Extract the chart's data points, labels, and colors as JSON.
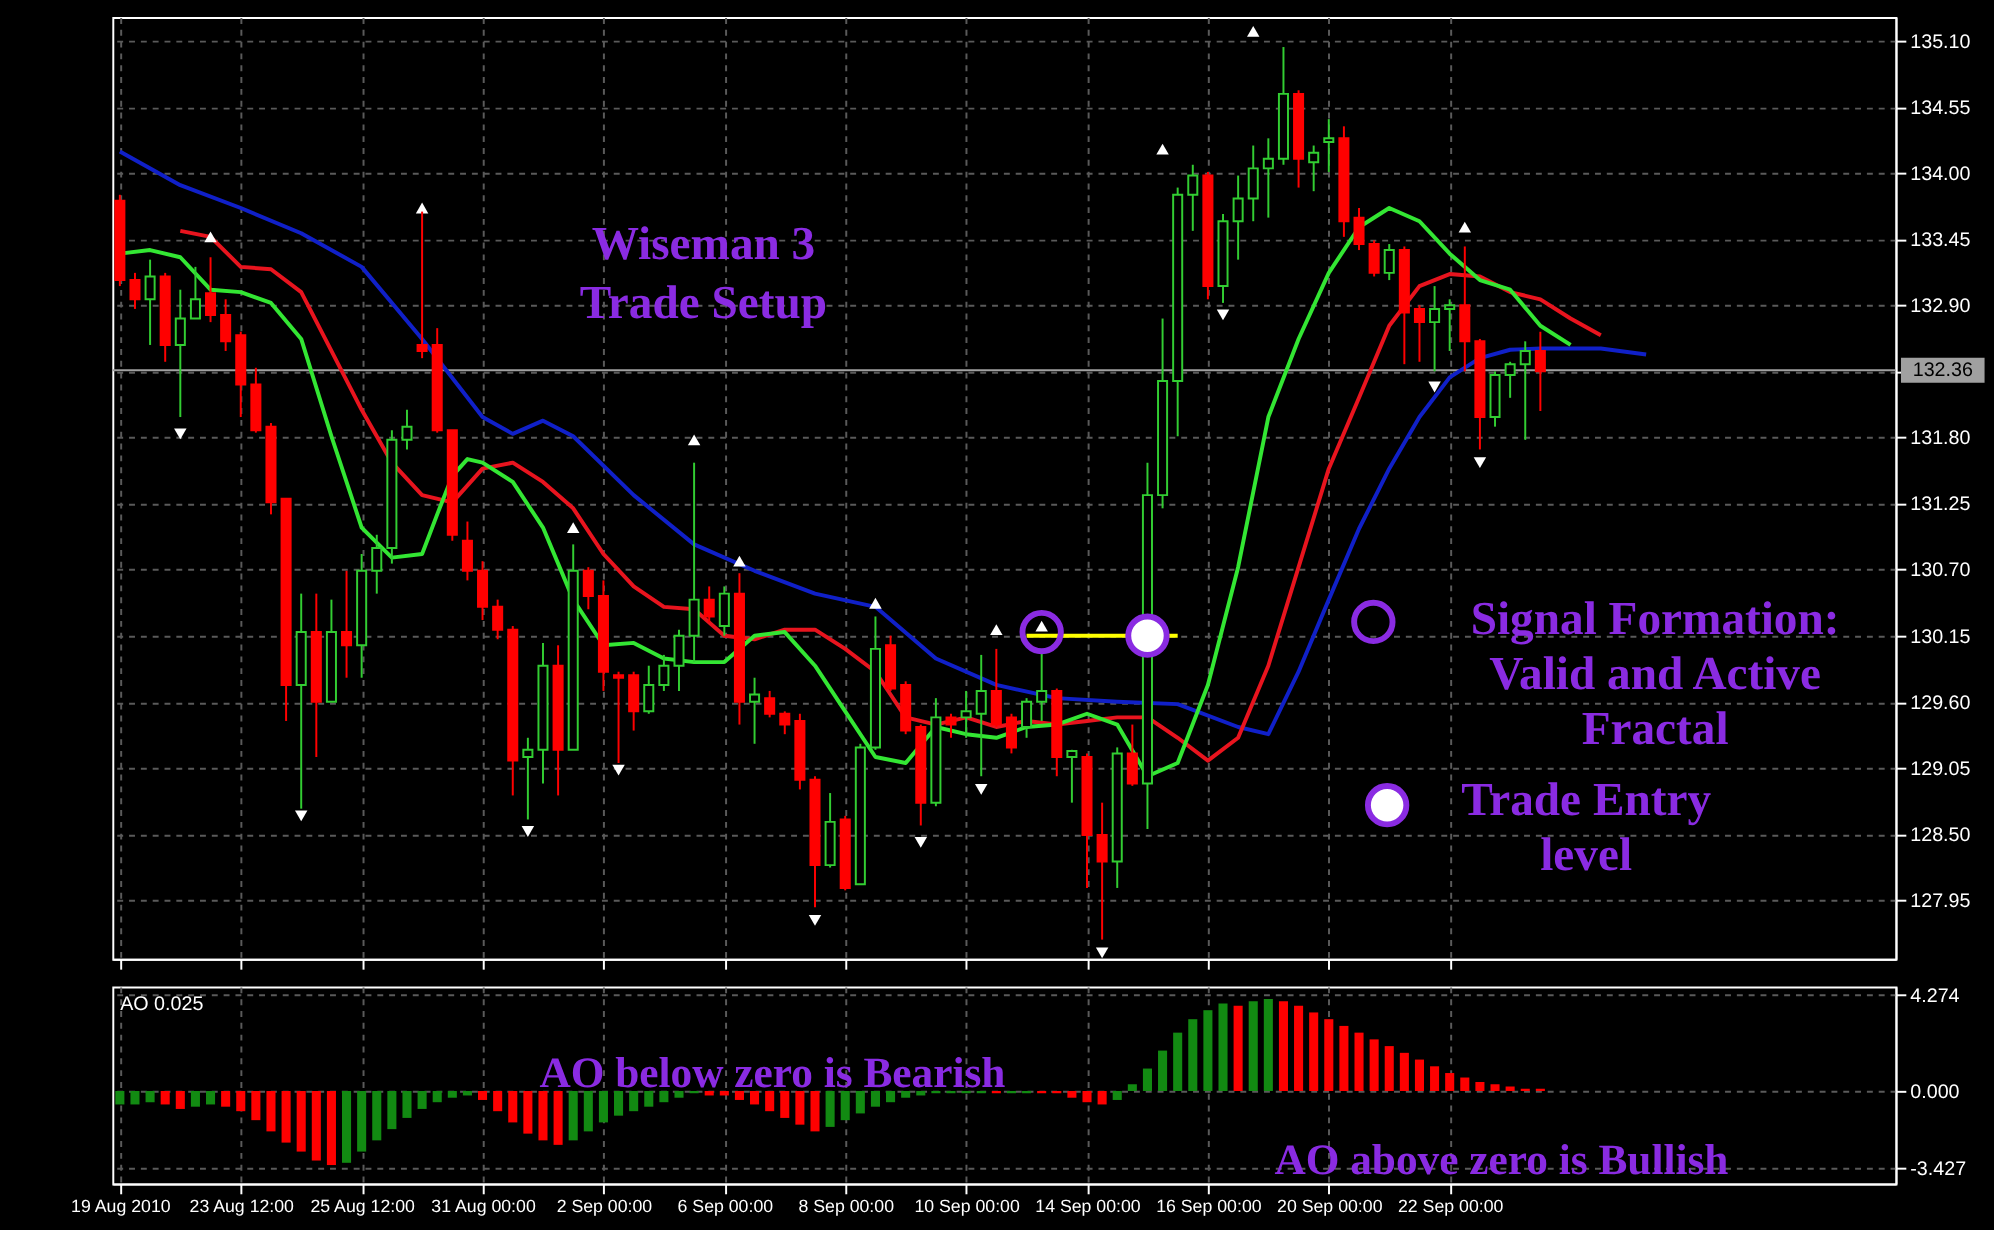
{
  "chart_data": [
    {
      "type": "candlestick",
      "annotations": [
        "Wiseman 3\nTrade Setup"
      ],
      "categories": [
        null,
        null,
        null,
        null,
        null,
        null,
        null,
        null,
        null,
        null,
        null,
        null,
        null,
        null,
        null,
        null,
        null,
        null,
        null,
        null,
        null,
        null,
        null,
        null,
        null,
        null,
        null,
        null,
        null,
        null,
        null,
        null,
        null,
        null,
        null,
        null,
        null,
        null,
        null,
        null,
        null,
        null,
        null,
        null,
        null,
        null,
        null,
        null,
        null,
        null,
        null,
        null,
        null,
        null,
        null,
        null,
        null,
        null,
        null,
        null,
        null,
        null,
        null,
        null,
        null,
        null,
        null,
        null,
        null,
        null,
        null,
        null,
        null,
        null,
        null,
        null,
        null,
        null,
        null,
        null,
        null,
        null,
        null,
        null,
        null,
        null,
        null,
        null,
        null,
        null,
        null,
        null,
        null,
        null,
        null,
        null,
        null,
        null,
        null,
        null,
        null,
        null,
        null,
        null,
        null,
        null,
        null,
        null,
        null,
        null,
        null,
        null,
        null,
        null,
        null,
        null,
        null,
        null
      ],
      "ohlc": [
        [
          133.77,
          133.82,
          133.06,
          133.11
        ],
        [
          133.11,
          133.17,
          132.87,
          132.95
        ],
        [
          132.95,
          133.28,
          132.57,
          133.14
        ],
        [
          133.14,
          133.17,
          132.43,
          132.57
        ],
        [
          132.57,
          133.03,
          131.97,
          132.79
        ],
        [
          132.79,
          133.22,
          132.79,
          132.95
        ],
        [
          133.0,
          133.3,
          132.76,
          132.82
        ],
        [
          132.82,
          132.95,
          132.52,
          132.6
        ],
        [
          132.65,
          132.68,
          131.97,
          132.24
        ],
        [
          132.24,
          132.38,
          131.84,
          131.86
        ],
        [
          131.89,
          131.92,
          131.16,
          131.26
        ],
        [
          131.29,
          131.29,
          129.44,
          129.74
        ],
        [
          129.74,
          130.5,
          128.71,
          130.18
        ],
        [
          130.18,
          130.5,
          129.14,
          129.6
        ],
        [
          129.6,
          130.45,
          129.6,
          130.18
        ],
        [
          130.18,
          130.69,
          129.8,
          130.07
        ],
        [
          130.07,
          130.83,
          129.8,
          130.69
        ],
        [
          130.69,
          130.99,
          130.5,
          130.88
        ],
        [
          130.88,
          131.86,
          130.75,
          131.78
        ],
        [
          131.78,
          132.03,
          131.7,
          131.89
        ],
        [
          132.57,
          133.68,
          132.46,
          132.52
        ],
        [
          132.57,
          132.71,
          131.84,
          131.86
        ],
        [
          131.86,
          131.86,
          130.94,
          130.99
        ],
        [
          130.94,
          131.1,
          130.61,
          130.69
        ],
        [
          130.69,
          130.77,
          130.28,
          130.39
        ],
        [
          130.39,
          130.45,
          130.12,
          130.2
        ],
        [
          130.2,
          130.23,
          128.82,
          129.11
        ],
        [
          129.14,
          129.3,
          128.62,
          129.2
        ],
        [
          129.2,
          130.09,
          128.92,
          129.9
        ],
        [
          129.9,
          130.07,
          128.82,
          129.2
        ],
        [
          129.2,
          130.91,
          129.2,
          130.69
        ],
        [
          130.69,
          130.72,
          130.37,
          130.48
        ],
        [
          130.48,
          130.61,
          129.69,
          129.85
        ],
        [
          129.82,
          129.85,
          129.09,
          129.8
        ],
        [
          129.82,
          129.85,
          129.36,
          129.52
        ],
        [
          129.52,
          129.9,
          129.5,
          129.74
        ],
        [
          129.74,
          129.99,
          129.69,
          129.9
        ],
        [
          129.9,
          130.2,
          129.69,
          130.15
        ],
        [
          130.15,
          131.59,
          129.93,
          130.45
        ],
        [
          130.45,
          130.56,
          130.26,
          130.31
        ],
        [
          130.23,
          130.56,
          130.15,
          130.5
        ],
        [
          130.5,
          130.67,
          129.41,
          129.6
        ],
        [
          129.6,
          129.8,
          129.25,
          129.66
        ],
        [
          129.63,
          129.69,
          129.47,
          129.5
        ],
        [
          129.5,
          129.52,
          129.33,
          129.41
        ],
        [
          129.44,
          129.5,
          128.87,
          128.95
        ],
        [
          128.95,
          128.98,
          127.89,
          128.24
        ],
        [
          128.24,
          128.84,
          128.22,
          128.6
        ],
        [
          128.62,
          128.65,
          128.03,
          128.05
        ],
        [
          128.08,
          129.25,
          128.08,
          129.22
        ],
        [
          129.22,
          130.31,
          129.2,
          130.04
        ],
        [
          130.07,
          130.15,
          129.69,
          129.71
        ],
        [
          129.74,
          129.77,
          129.33,
          129.36
        ],
        [
          129.39,
          129.41,
          128.57,
          128.76
        ],
        [
          128.76,
          129.63,
          128.73,
          129.47
        ],
        [
          129.47,
          129.5,
          129.3,
          129.41
        ],
        [
          129.47,
          129.69,
          129.3,
          129.52
        ],
        [
          129.5,
          129.99,
          128.98,
          129.69
        ],
        [
          129.69,
          130.04,
          129.39,
          129.41
        ],
        [
          129.47,
          129.5,
          129.17,
          129.22
        ],
        [
          129.39,
          129.63,
          129.3,
          129.6
        ],
        [
          129.6,
          130.04,
          129.44,
          129.69
        ],
        [
          129.69,
          129.71,
          128.98,
          129.14
        ],
        [
          129.14,
          129.2,
          128.76,
          129.19
        ],
        [
          129.14,
          129.17,
          128.05,
          128.49
        ],
        [
          128.49,
          128.76,
          127.62,
          128.27
        ],
        [
          128.27,
          129.22,
          128.05,
          129.17
        ],
        [
          129.17,
          129.41,
          128.9,
          128.92
        ],
        [
          128.92,
          131.59,
          128.54,
          131.32
        ],
        [
          131.32,
          132.79,
          131.21,
          132.27
        ],
        [
          132.27,
          133.88,
          131.81,
          133.82
        ],
        [
          133.82,
          134.07,
          133.52,
          133.98
        ],
        [
          133.98,
          134.01,
          132.95,
          133.06
        ],
        [
          133.06,
          133.66,
          132.92,
          133.6
        ],
        [
          133.6,
          133.98,
          133.28,
          133.79
        ],
        [
          133.79,
          134.23,
          133.6,
          134.04
        ],
        [
          134.04,
          134.29,
          133.63,
          134.12
        ],
        [
          134.12,
          135.05,
          134.07,
          134.66
        ],
        [
          134.66,
          134.69,
          133.88,
          134.12
        ],
        [
          134.09,
          134.23,
          133.85,
          134.17
        ],
        [
          134.26,
          134.45,
          134.01,
          134.29
        ],
        [
          134.29,
          134.39,
          133.47,
          133.6
        ],
        [
          133.63,
          133.71,
          133.36,
          133.41
        ],
        [
          133.41,
          133.44,
          133.14,
          133.17
        ],
        [
          133.17,
          133.41,
          133.11,
          133.36
        ],
        [
          133.36,
          133.39,
          132.41,
          132.84
        ],
        [
          132.87,
          132.9,
          132.43,
          132.76
        ],
        [
          132.76,
          133.06,
          132.35,
          132.87
        ],
        [
          132.87,
          132.95,
          132.52,
          132.9
        ],
        [
          132.9,
          133.39,
          132.35,
          132.6
        ],
        [
          132.6,
          132.62,
          131.7,
          131.97
        ],
        [
          131.97,
          132.35,
          131.89,
          132.32
        ],
        [
          132.32,
          132.43,
          132.13,
          132.41
        ],
        [
          132.41,
          132.6,
          131.78,
          132.52
        ],
        [
          132.52,
          132.68,
          132.02,
          132.35
        ],
        null,
        null,
        null,
        null,
        null,
        null,
        null,
        null,
        null,
        null,
        null,
        null,
        null,
        null,
        null,
        null,
        null,
        null,
        null,
        null,
        null,
        null,
        null
      ],
      "colors": [
        "#ff0000",
        "#ff0000",
        "#32cd32",
        "#ff0000",
        "#32cd32",
        "#32cd32",
        "#ff0000",
        "#ff0000",
        "#ff0000",
        "#ff0000",
        "#ff0000",
        "#ff0000",
        "#32cd32",
        "#ff0000",
        "#32cd32",
        "#ff0000",
        "#32cd32",
        "#32cd32",
        "#32cd32",
        "#32cd32",
        "#ff0000",
        "#ff0000",
        "#ff0000",
        "#ff0000",
        "#ff0000",
        "#ff0000",
        "#ff0000",
        "#32cd32",
        "#32cd32",
        "#ff0000",
        "#32cd32",
        "#ff0000",
        "#ff0000",
        "#ff0000",
        "#ff0000",
        "#32cd32",
        "#32cd32",
        "#32cd32",
        "#32cd32",
        "#ff0000",
        "#32cd32",
        "#ff0000",
        "#32cd32",
        "#ff0000",
        "#ff0000",
        "#ff0000",
        "#ff0000",
        "#32cd32",
        "#ff0000",
        "#32cd32",
        "#32cd32",
        "#ff0000",
        "#ff0000",
        "#ff0000",
        "#32cd32",
        "#ff0000",
        "#32cd32",
        "#32cd32",
        "#ff0000",
        "#ff0000",
        "#32cd32",
        "#32cd32",
        "#ff0000",
        "#32cd32",
        "#ff0000",
        "#ff0000",
        "#32cd32",
        "#ff0000",
        "#32cd32",
        "#32cd32",
        "#32cd32",
        "#32cd32",
        "#ff0000",
        "#32cd32",
        "#32cd32",
        "#32cd32",
        "#32cd32",
        "#32cd32",
        "#ff0000",
        "#32cd32",
        "#32cd32",
        "#ff0000",
        "#ff0000",
        "#ff0000",
        "#32cd32",
        "#ff0000",
        "#ff0000",
        "#32cd32",
        "#32cd32",
        "#ff0000",
        "#ff0000",
        "#32cd32",
        "#32cd32",
        "#32cd32",
        "#ff0000",
        null,
        null,
        null,
        null,
        null,
        null,
        null,
        null,
        null,
        null,
        null,
        null,
        null,
        null,
        null,
        null,
        null,
        null,
        null,
        null,
        null,
        null,
        null
      ],
      "series": [
        {
          "type": "line",
          "color": "#1020c8",
          "values": [
            134.18,
            null,
            null,
            null,
            133.9,
            null,
            null,
            null,
            133.71,
            null,
            null,
            null,
            133.5,
            null,
            null,
            null,
            133.22,
            null,
            null,
            null,
            132.62,
            null,
            null,
            null,
            131.97,
            null,
            131.83,
            null,
            131.94,
            null,
            131.81,
            null,
            null,
            null,
            131.32,
            null,
            null,
            null,
            130.91,
            null,
            null,
            null,
            130.69,
            null,
            null,
            null,
            130.5,
            null,
            null,
            null,
            130.39,
            null,
            null,
            null,
            129.96,
            null,
            null,
            null,
            129.74,
            null,
            null,
            null,
            129.63,
            null,
            null,
            null,
            129.6,
            null,
            null,
            null,
            129.58,
            null,
            null,
            null,
            129.39,
            null,
            129.33,
            null,
            129.85,
            null,
            130.45,
            null,
            131.04,
            null,
            131.54,
            null,
            131.97,
            null,
            132.3,
            null,
            132.46,
            null,
            132.53,
            null,
            132.54,
            null,
            null,
            null,
            132.54,
            null,
            null,
            132.49,
            null,
            null,
            null,
            null,
            null,
            null,
            null,
            null,
            null,
            null,
            null,
            null,
            null,
            null,
            null,
            null
          ]
        },
        {
          "type": "line",
          "color": "#e8141e",
          "values": [
            null,
            null,
            null,
            null,
            133.52,
            null,
            133.47,
            null,
            133.22,
            null,
            133.2,
            null,
            133.01,
            null,
            132.52,
            null,
            132.03,
            null,
            131.59,
            null,
            131.32,
            null,
            131.26,
            null,
            131.54,
            null,
            131.59,
            null,
            131.43,
            null,
            131.21,
            null,
            130.83,
            null,
            130.56,
            null,
            130.39,
            null,
            130.37,
            null,
            130.15,
            null,
            130.12,
            null,
            130.2,
            null,
            130.2,
            null,
            130.04,
            null,
            129.85,
            null,
            129.47,
            null,
            129.41,
            null,
            129.47,
            null,
            129.39,
            null,
            129.44,
            null,
            129.41,
            null,
            129.44,
            null,
            129.47,
            null,
            129.47,
            null,
            129.3,
            null,
            129.11,
            null,
            129.3,
            null,
            129.9,
            null,
            130.72,
            null,
            131.54,
            null,
            132.13,
            null,
            132.73,
            null,
            133.06,
            null,
            133.16,
            null,
            133.14,
            null,
            133.01,
            null,
            132.95,
            null,
            132.79,
            null,
            132.65,
            null,
            null,
            null,
            null,
            null,
            null,
            null,
            null,
            null,
            null,
            null,
            null,
            null,
            null,
            null,
            null,
            null,
            null,
            null
          ]
        },
        {
          "type": "line",
          "color": "#33e633",
          "values": [
            133.33,
            null,
            133.36,
            null,
            133.3,
            null,
            133.03,
            null,
            133.01,
            null,
            132.92,
            null,
            132.62,
            null,
            131.81,
            null,
            131.05,
            null,
            130.8,
            null,
            130.83,
            131.16,
            131.48,
            131.62,
            131.59,
            null,
            131.43,
            null,
            131.05,
            null,
            130.45,
            null,
            130.07,
            null,
            130.09,
            null,
            129.96,
            null,
            129.93,
            null,
            129.93,
            null,
            130.15,
            null,
            130.18,
            null,
            129.9,
            null,
            129.52,
            null,
            129.14,
            null,
            129.09,
            null,
            129.39,
            null,
            129.33,
            null,
            129.3,
            null,
            129.39,
            null,
            129.41,
            null,
            129.5,
            null,
            129.41,
            null,
            128.98,
            null,
            129.09,
            null,
            129.74,
            null,
            130.72,
            null,
            131.97,
            null,
            132.62,
            null,
            133.17,
            null,
            133.55,
            null,
            133.71,
            null,
            133.6,
            null,
            133.33,
            null,
            133.11,
            null,
            133.03,
            null,
            132.73,
            null,
            132.57,
            null,
            null,
            null,
            null,
            null,
            null,
            null,
            null,
            null,
            null,
            null,
            null,
            null,
            null,
            null,
            null,
            null,
            null,
            null,
            null,
            null
          ]
        },
        {
          "type": "line",
          "color": "#ffff00",
          "values": [
            null,
            null,
            null,
            null,
            null,
            null,
            null,
            null,
            null,
            null,
            null,
            null,
            null,
            null,
            null,
            null,
            null,
            null,
            null,
            null,
            null,
            null,
            null,
            null,
            null,
            null,
            null,
            null,
            null,
            null,
            null,
            null,
            null,
            null,
            null,
            null,
            null,
            null,
            null,
            null,
            null,
            null,
            null,
            null,
            null,
            null,
            null,
            null,
            null,
            null,
            null,
            null,
            null,
            null,
            null,
            null,
            null,
            null,
            null,
            null,
            130.15,
            null,
            null,
            null,
            null,
            null,
            null,
            null,
            null,
            null,
            130.15,
            null,
            null,
            null,
            null,
            null,
            null,
            null,
            null,
            null,
            null,
            null,
            null,
            null,
            null,
            null,
            null,
            null,
            null,
            null,
            null,
            null,
            null,
            null,
            null,
            null,
            null,
            null,
            null,
            null,
            null,
            null,
            null,
            null,
            null,
            null,
            null,
            null,
            null,
            null,
            null,
            null,
            null,
            null,
            null,
            null,
            null,
            null
          ]
        },
        {
          "type": "scatter",
          "marker": "triangle",
          "color": "#ffffff",
          "values": [
            null,
            null,
            null,
            null,
            null,
            null,
            133.47,
            null,
            null,
            null,
            null,
            null,
            null,
            null,
            null,
            null,
            null,
            null,
            null,
            null,
            133.71,
            null,
            null,
            null,
            null,
            null,
            null,
            null,
            null,
            null,
            131.05,
            null,
            null,
            null,
            null,
            null,
            null,
            null,
            131.78,
            null,
            null,
            130.77,
            null,
            null,
            null,
            null,
            null,
            null,
            null,
            null,
            130.42,
            null,
            null,
            null,
            null,
            null,
            null,
            null,
            130.2,
            null,
            null,
            130.23,
            null,
            null,
            null,
            null,
            null,
            null,
            null,
            134.2,
            null,
            null,
            null,
            null,
            null,
            135.18,
            null,
            null,
            null,
            null,
            null,
            null,
            null,
            null,
            null,
            null,
            null,
            null,
            null,
            133.55,
            null,
            null,
            null,
            null,
            null,
            null,
            null,
            null,
            null,
            null,
            null,
            null,
            null,
            null,
            null,
            null,
            null,
            null,
            null,
            null,
            null,
            null,
            null,
            null,
            null,
            null,
            null,
            null
          ]
        },
        {
          "type": "scatter",
          "marker": "triangle-down",
          "color": "#ffffff",
          "values": [
            null,
            null,
            null,
            null,
            131.83,
            null,
            null,
            null,
            null,
            null,
            null,
            null,
            128.65,
            null,
            null,
            null,
            null,
            null,
            null,
            null,
            null,
            null,
            null,
            null,
            null,
            null,
            null,
            128.52,
            null,
            null,
            null,
            null,
            null,
            129.03,
            null,
            null,
            null,
            null,
            null,
            null,
            null,
            null,
            null,
            null,
            null,
            null,
            127.78,
            null,
            null,
            null,
            null,
            null,
            null,
            128.43,
            null,
            null,
            null,
            128.87,
            null,
            null,
            null,
            null,
            null,
            null,
            null,
            127.51,
            null,
            null,
            null,
            null,
            null,
            null,
            null,
            132.82,
            null,
            null,
            null,
            null,
            null,
            null,
            null,
            null,
            null,
            null,
            null,
            null,
            null,
            132.22,
            null,
            null,
            131.59,
            null,
            null,
            null,
            null,
            null,
            null,
            null,
            null,
            null,
            null,
            null,
            null,
            null,
            null,
            null,
            null,
            null,
            null,
            null,
            null,
            null,
            null,
            null,
            null,
            null,
            null,
            null
          ]
        },
        {
          "type": "scatter",
          "marker": "circle",
          "name": "Signal Formation:\nValid and Active\nFractal",
          "color": "#8a2be2",
          "values": [
            null,
            null,
            null,
            null,
            null,
            null,
            null,
            null,
            null,
            null,
            null,
            null,
            null,
            null,
            null,
            null,
            null,
            null,
            null,
            null,
            null,
            null,
            null,
            null,
            null,
            null,
            null,
            null,
            null,
            null,
            null,
            null,
            null,
            null,
            null,
            null,
            null,
            null,
            null,
            null,
            null,
            null,
            null,
            null,
            null,
            null,
            null,
            null,
            null,
            null,
            null,
            null,
            null,
            null,
            null,
            null,
            null,
            null,
            null,
            null,
            null,
            130.18,
            null,
            null,
            null,
            null,
            null,
            null,
            null,
            null,
            null,
            null,
            null,
            null,
            null,
            null,
            null,
            null,
            null,
            null,
            null,
            null,
            null,
            null,
            null,
            null,
            null,
            null,
            null,
            null,
            null,
            null,
            null,
            null,
            null,
            null,
            null,
            null,
            null,
            null,
            null,
            null,
            null,
            null,
            null,
            null,
            null,
            null,
            null,
            null,
            null,
            null,
            null,
            null,
            null,
            null,
            null,
            null
          ]
        },
        {
          "type": "scatter",
          "marker": "circle",
          "name": "Trade Entry\nlevel",
          "color": "#ffffff",
          "values": [
            null,
            null,
            null,
            null,
            null,
            null,
            null,
            null,
            null,
            null,
            null,
            null,
            null,
            null,
            null,
            null,
            null,
            null,
            null,
            null,
            null,
            null,
            null,
            null,
            null,
            null,
            null,
            null,
            null,
            null,
            null,
            null,
            null,
            null,
            null,
            null,
            null,
            null,
            null,
            null,
            null,
            null,
            null,
            null,
            null,
            null,
            null,
            null,
            null,
            null,
            null,
            null,
            null,
            null,
            null,
            null,
            null,
            null,
            null,
            null,
            null,
            null,
            null,
            null,
            null,
            null,
            null,
            null,
            130.15,
            null,
            null,
            null,
            null,
            null,
            null,
            null,
            null,
            null,
            null,
            null,
            null,
            null,
            null,
            null,
            null,
            null,
            null,
            null,
            null,
            null,
            null,
            null,
            null,
            null,
            null,
            null,
            null,
            null,
            null,
            null,
            null,
            null,
            null,
            null,
            null,
            null,
            null,
            null,
            null,
            null,
            null,
            null,
            null,
            null,
            null,
            null,
            null,
            null
          ]
        }
      ],
      "ref_lines": [
        {
          "axis": "y",
          "value": 132.36,
          "label": "132.36",
          "color": "#a0a0a0"
        }
      ],
      "legend": "bottom right",
      "grid": true,
      "tick_labels": "y",
      "ylim": [
        127.46,
        135.3
      ],
      "yticks": [
        {
          "value": 127.95,
          "label": "127.95"
        },
        {
          "value": 128.5,
          "label": "128.50"
        },
        {
          "value": 129.05,
          "label": "129.05"
        },
        {
          "value": 129.6,
          "label": "129.60"
        },
        {
          "value": 130.15,
          "label": "130.15"
        },
        {
          "value": 130.7,
          "label": "130.70"
        },
        {
          "value": 131.25,
          "label": "131.25"
        },
        {
          "value": 131.8,
          "label": "131.80"
        },
        {
          "value": 132.35,
          "label": null
        },
        {
          "value": 132.9,
          "label": "132.90"
        },
        {
          "value": 133.45,
          "label": "133.45"
        },
        {
          "value": 134.0,
          "label": "134.00"
        },
        {
          "value": 134.55,
          "label": "134.55"
        },
        {
          "value": 135.1,
          "label": "135.10"
        }
      ]
    },
    {
      "type": "bar",
      "title": "AO 0.025",
      "annotations": [
        "AO below zero is Bearish",
        "AO above zero is Bullish"
      ],
      "categories": [
        "19 Aug 2010",
        null,
        null,
        null,
        null,
        null,
        null,
        null,
        "23 Aug 12:00",
        null,
        null,
        null,
        null,
        null,
        null,
        null,
        "25 Aug 12:00",
        null,
        null,
        null,
        null,
        null,
        null,
        null,
        "31 Aug 00:00",
        null,
        null,
        null,
        null,
        null,
        null,
        null,
        "2 Sep 00:00",
        null,
        null,
        null,
        null,
        null,
        null,
        null,
        "6 Sep 00:00",
        null,
        null,
        null,
        null,
        null,
        null,
        null,
        "8 Sep 00:00",
        null,
        null,
        null,
        null,
        null,
        null,
        null,
        "10 Sep 00:00",
        null,
        null,
        null,
        null,
        null,
        null,
        null,
        "14 Sep 00:00",
        null,
        null,
        null,
        null,
        null,
        null,
        null,
        "16 Sep 00:00",
        null,
        null,
        null,
        null,
        null,
        null,
        null,
        "20 Sep 00:00",
        null,
        null,
        null,
        null,
        null,
        null,
        null,
        "22 Sep 00:00",
        null,
        null,
        null,
        null,
        null,
        null,
        null,
        null,
        null,
        null,
        null,
        null,
        null,
        null,
        null,
        null,
        null,
        null,
        null,
        null,
        null,
        null,
        null,
        null,
        null,
        null,
        null,
        null,
        null
      ],
      "values": [
        -0.6,
        -0.6,
        -0.5,
        -0.6,
        -0.8,
        -0.7,
        -0.6,
        -0.7,
        -0.9,
        -1.3,
        -1.8,
        -2.3,
        -2.7,
        -3.1,
        -3.3,
        -3.2,
        -2.7,
        -2.2,
        -1.7,
        -1.2,
        -0.8,
        -0.5,
        -0.3,
        -0.2,
        -0.4,
        -0.9,
        -1.4,
        -1.9,
        -2.2,
        -2.4,
        -2.2,
        -1.8,
        -1.4,
        -1.1,
        -0.9,
        -0.7,
        -0.5,
        -0.3,
        -0.1,
        -0.2,
        -0.2,
        -0.4,
        -0.6,
        -0.9,
        -1.2,
        -1.5,
        -1.8,
        -1.6,
        -1.3,
        -1.0,
        -0.7,
        -0.5,
        -0.3,
        -0.2,
        -0.1,
        -0.1,
        -0.1,
        -0.1,
        -0.1,
        -0.1,
        -0.1,
        -0.1,
        -0.1,
        -0.3,
        -0.5,
        -0.6,
        -0.4,
        0.3,
        1.0,
        1.8,
        2.6,
        3.2,
        3.6,
        3.9,
        3.8,
        4.0,
        4.1,
        4.0,
        3.8,
        3.5,
        3.2,
        2.9,
        2.6,
        2.3,
        2.0,
        1.7,
        1.4,
        1.1,
        0.8,
        0.6,
        0.4,
        0.3,
        0.2,
        0.1,
        0.1,
        null,
        null,
        null,
        null,
        null,
        null,
        null,
        null,
        null,
        null,
        null,
        null,
        null,
        null,
        null,
        null,
        null,
        null,
        null,
        null,
        null,
        null,
        null
      ],
      "colors": [
        "#128a12",
        "#128a12",
        "#128a12",
        "#ff0000",
        "#ff0000",
        "#128a12",
        "#128a12",
        "#ff0000",
        "#ff0000",
        "#ff0000",
        "#ff0000",
        "#ff0000",
        "#ff0000",
        "#ff0000",
        "#ff0000",
        "#128a12",
        "#128a12",
        "#128a12",
        "#128a12",
        "#128a12",
        "#128a12",
        "#128a12",
        "#128a12",
        "#128a12",
        "#ff0000",
        "#ff0000",
        "#ff0000",
        "#ff0000",
        "#ff0000",
        "#ff0000",
        "#128a12",
        "#128a12",
        "#128a12",
        "#128a12",
        "#128a12",
        "#128a12",
        "#128a12",
        "#128a12",
        "#128a12",
        "#ff0000",
        "#ff0000",
        "#ff0000",
        "#ff0000",
        "#ff0000",
        "#ff0000",
        "#ff0000",
        "#ff0000",
        "#128a12",
        "#128a12",
        "#128a12",
        "#128a12",
        "#128a12",
        "#128a12",
        "#128a12",
        "#128a12",
        "#128a12",
        "#128a12",
        "#128a12",
        "#ff0000",
        "#128a12",
        "#128a12",
        "#ff0000",
        "#ff0000",
        "#ff0000",
        "#ff0000",
        "#ff0000",
        "#128a12",
        "#128a12",
        "#128a12",
        "#128a12",
        "#128a12",
        "#128a12",
        "#128a12",
        "#128a12",
        "#ff0000",
        "#128a12",
        "#128a12",
        "#ff0000",
        "#ff0000",
        "#ff0000",
        "#ff0000",
        "#ff0000",
        "#ff0000",
        "#ff0000",
        "#ff0000",
        "#ff0000",
        "#ff0000",
        "#ff0000",
        "#ff0000",
        "#ff0000",
        "#ff0000",
        "#ff0000",
        "#ff0000",
        "#ff0000",
        "#ff0000",
        null,
        null,
        null,
        null,
        null,
        null,
        null,
        null,
        null,
        null,
        null,
        null,
        null,
        null,
        null,
        null,
        null,
        null,
        null,
        null,
        null,
        null,
        null
      ],
      "grid": true,
      "ylim": [
        -4.12,
        4.66
      ],
      "yticks": [
        {
          "value": 4.274,
          "label": "4.274"
        },
        {
          "value": 0,
          "label": "0.000"
        },
        {
          "value": -3.427,
          "label": "-3.427"
        }
      ]
    }
  ]
}
